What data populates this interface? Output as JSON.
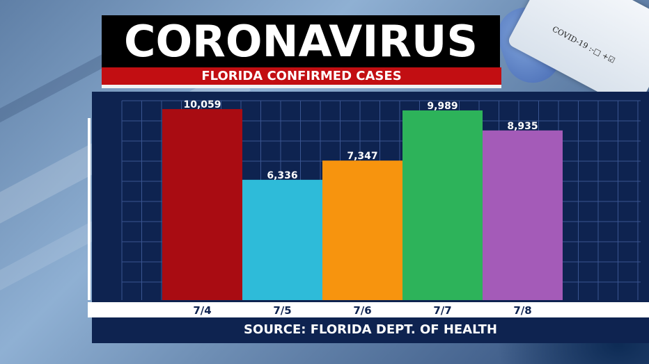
{
  "header": {
    "title": "CORONAVIRUS",
    "subtitle": "FLORIDA CONFIRMED CASES"
  },
  "background": {
    "vial_label": "COVID-19 :-□ +☑"
  },
  "footer": {
    "source": "SOURCE: FLORIDA DEPT. OF HEALTH"
  },
  "colors": {
    "panel": "#0e2350",
    "grid": "#3a5591",
    "title_bg": "#000000",
    "subtitle_bg": "#c20e12"
  },
  "chart_data": {
    "type": "bar",
    "title": "FLORIDA CONFIRMED CASES",
    "categories": [
      "7/4",
      "7/5",
      "7/6",
      "7/7",
      "7/8"
    ],
    "values": [
      10059,
      6336,
      7347,
      9989,
      8935
    ],
    "value_labels": [
      "10,059",
      "6,336",
      "7,347",
      "9,989",
      "8,935"
    ],
    "bar_colors": [
      "#a90c12",
      "#2ebbd9",
      "#f7940e",
      "#2db35a",
      "#a45bb8"
    ],
    "ylim": [
      0,
      10500
    ],
    "grid": true,
    "legend": "none"
  }
}
